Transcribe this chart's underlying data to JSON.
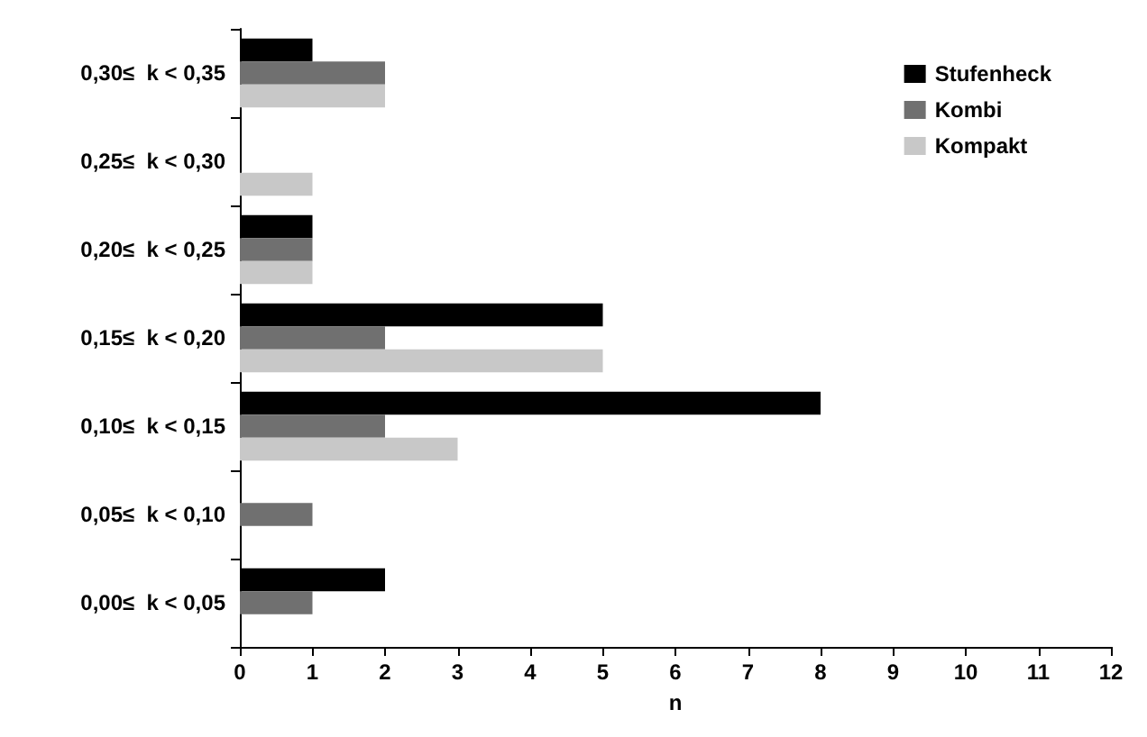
{
  "chart_data": {
    "type": "bar",
    "orientation": "horizontal",
    "xlabel": "n",
    "categories": [
      "0,30≤  k < 0,35",
      "0,25≤  k < 0,30",
      "0,20≤  k < 0,25",
      "0,15≤  k < 0,20",
      "0,10≤  k < 0,15",
      "0,05≤  k < 0,10",
      "0,00≤  k < 0,05"
    ],
    "series": [
      {
        "name": "Stufenheck",
        "color": "#000000",
        "values": [
          1,
          0,
          1,
          5,
          8,
          0,
          2
        ]
      },
      {
        "name": "Kombi",
        "color": "#707070",
        "values": [
          2,
          0,
          1,
          2,
          2,
          1,
          1
        ]
      },
      {
        "name": "Kompakt",
        "color": "#c8c8c8",
        "values": [
          2,
          1,
          1,
          5,
          3,
          0,
          0
        ]
      }
    ],
    "xlim": [
      0,
      12
    ],
    "xticks": [
      0,
      1,
      2,
      3,
      4,
      5,
      6,
      7,
      8,
      9,
      10,
      11,
      12
    ],
    "grid": false,
    "legend": "top right"
  }
}
